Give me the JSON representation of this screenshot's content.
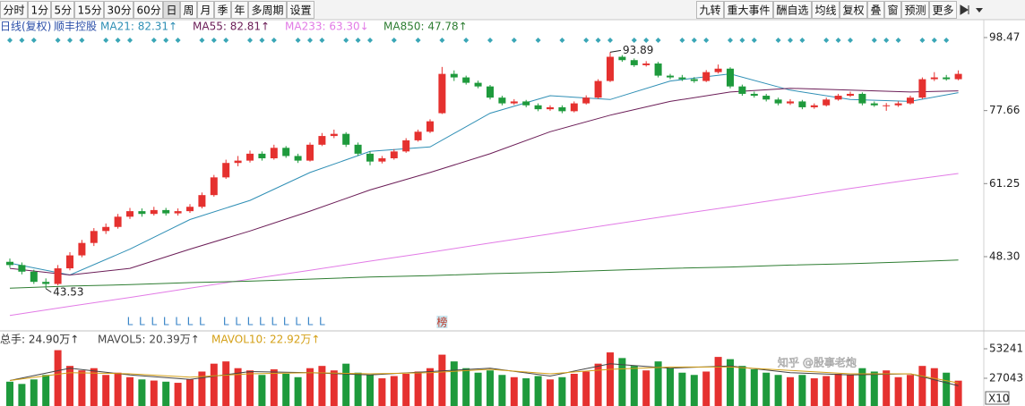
{
  "toolbar": {
    "left": [
      "分时",
      "1分",
      "5分",
      "15分",
      "30分",
      "60分",
      "日",
      "周",
      "月",
      "季",
      "年",
      "多周期",
      "设置"
    ],
    "right": [
      "九转",
      "重大事件",
      "酬自选",
      "均线",
      "复权",
      "叠",
      "窗",
      "预测",
      "更多"
    ],
    "selected": "日"
  },
  "watermark": "知乎 @股事老炮",
  "chart_data": [
    {
      "type": "candlestick",
      "title": "日线(复权)",
      "subtitle": "顺丰控股",
      "up_color": "#e5312f",
      "down_color": "#1e9a3c",
      "log_scale": true,
      "grid": false,
      "ylim": [
        38.5,
        100.2
      ],
      "yticks": [
        98.47,
        77.66,
        61.25,
        {
          "value": 48.3,
          "label": "48.30"
        }
      ],
      "open": [
        47.5,
        47.0,
        46.0,
        44.5,
        44.2,
        46.5,
        48.5,
        50.5,
        52.5,
        53.2,
        55.0,
        56.0,
        55.5,
        56.2,
        55.6,
        56.0,
        56.8,
        59.0,
        62.5,
        65.5,
        66.0,
        67.5,
        66.5,
        68.8,
        67.0,
        66.0,
        69.5,
        71.5,
        72.0,
        69.5,
        67.5,
        65.8,
        66.5,
        68.0,
        70.5,
        72.5,
        77.0,
        87.5,
        86.5,
        85.0,
        84.0,
        81.0,
        79.5,
        80.0,
        79.0,
        78.0,
        78.5,
        77.5,
        79.5,
        81.0,
        85.5,
        92.5,
        91.5,
        90.0,
        90.5,
        87.0,
        86.5,
        86.0,
        85.5,
        88.0,
        89.0,
        84.0,
        82.0,
        81.5,
        80.5,
        79.5,
        80.0,
        78.5,
        79.0,
        80.5,
        81.5,
        82.0,
        79.5,
        79.0,
        79.0,
        79.5,
        81.0,
        86.0,
        86.5,
        86.0
      ],
      "high": [
        48.0,
        47.4,
        46.3,
        45.0,
        47.0,
        49.0,
        51.0,
        53.0,
        53.8,
        55.5,
        56.6,
        56.5,
        56.8,
        56.6,
        56.5,
        57.3,
        59.5,
        63.0,
        66.2,
        67.0,
        68.2,
        68.0,
        69.5,
        69.2,
        67.5,
        70.0,
        72.2,
        73.0,
        72.4,
        70.0,
        68.0,
        67.0,
        68.5,
        71.0,
        73.0,
        75.5,
        89.5,
        88.5,
        87.0,
        85.6,
        84.4,
        81.5,
        80.6,
        80.4,
        79.5,
        79.0,
        79.0,
        80.0,
        81.6,
        86.0,
        93.89,
        93.0,
        92.0,
        91.2,
        91.0,
        87.5,
        87.2,
        86.6,
        88.6,
        90.2,
        89.4,
        84.5,
        82.6,
        82.0,
        81.0,
        80.6,
        80.4,
        79.5,
        81.0,
        82.0,
        82.6,
        82.4,
        80.0,
        79.6,
        80.0,
        81.5,
        86.5,
        88.0,
        87.2,
        88.5
      ],
      "low": [
        46.6,
        45.6,
        44.2,
        43.53,
        44.0,
        46.2,
        48.2,
        50.0,
        52.0,
        52.9,
        54.6,
        55.0,
        55.2,
        55.2,
        55.2,
        55.7,
        56.5,
        58.7,
        62.2,
        64.8,
        65.6,
        66.0,
        66.2,
        66.6,
        65.5,
        65.8,
        69.2,
        71.0,
        69.0,
        67.0,
        65.0,
        65.4,
        66.2,
        67.7,
        70.2,
        72.2,
        76.8,
        85.5,
        84.5,
        83.5,
        80.5,
        79.0,
        79.1,
        78.5,
        77.5,
        77.6,
        77.0,
        77.2,
        79.2,
        80.7,
        85.2,
        91.0,
        89.5,
        89.6,
        86.5,
        86.0,
        85.5,
        85.0,
        85.2,
        87.6,
        83.5,
        81.5,
        81.0,
        80.0,
        79.0,
        79.1,
        78.0,
        78.1,
        78.7,
        80.2,
        81.2,
        79.0,
        78.6,
        77.6,
        78.6,
        79.2,
        80.7,
        85.5,
        85.6,
        85.7
      ],
      "close": [
        47.0,
        46.0,
        44.5,
        44.2,
        46.5,
        48.5,
        50.5,
        52.5,
        53.2,
        55.0,
        56.0,
        55.5,
        56.2,
        55.6,
        56.0,
        56.8,
        59.0,
        62.5,
        65.5,
        66.0,
        67.5,
        66.5,
        68.8,
        67.0,
        66.0,
        69.5,
        71.5,
        72.0,
        69.5,
        67.5,
        65.8,
        66.5,
        68.0,
        70.5,
        72.5,
        75.0,
        87.5,
        86.5,
        85.0,
        84.0,
        81.0,
        79.5,
        80.0,
        79.0,
        78.0,
        78.5,
        77.5,
        79.5,
        81.0,
        85.5,
        92.5,
        91.5,
        90.0,
        90.5,
        87.0,
        86.5,
        86.0,
        85.5,
        88.0,
        89.0,
        84.0,
        82.0,
        81.5,
        80.5,
        79.5,
        80.0,
        78.5,
        79.0,
        80.5,
        81.5,
        82.0,
        79.5,
        79.0,
        79.0,
        79.5,
        81.0,
        86.0,
        86.5,
        86.0,
        87.5
      ],
      "bottom_marks": [
        null,
        null,
        null,
        null,
        null,
        null,
        null,
        null,
        null,
        null,
        "L",
        "L",
        "L",
        "L",
        "L",
        "L",
        "L",
        null,
        "L",
        "L",
        "L",
        "L",
        "L",
        "L",
        "L",
        "L",
        "L",
        null,
        null,
        null,
        null,
        null,
        null,
        null,
        null,
        null,
        "榜",
        null,
        null,
        null,
        null,
        null,
        null,
        null,
        null,
        null,
        null,
        null,
        null,
        null,
        null,
        null,
        null,
        null,
        null,
        null,
        null,
        null,
        null,
        null,
        null,
        null,
        null,
        null,
        null,
        null,
        null,
        null,
        null,
        null,
        null,
        null,
        null,
        null,
        null,
        null,
        null,
        null,
        null,
        null
      ],
      "series": [
        {
          "name": "MA21: 82.31↑",
          "color": "#2f8fb5",
          "x": [
            0,
            5,
            10,
            15,
            20,
            25,
            30,
            35,
            40,
            45,
            50,
            55,
            60,
            65,
            70,
            75,
            79
          ],
          "values": [
            47.3,
            45.5,
            49.5,
            54.5,
            58.0,
            63.5,
            68.0,
            69.0,
            77.0,
            81.5,
            80.5,
            85.5,
            87.5,
            83.0,
            80.5,
            80.0,
            82.31
          ]
        },
        {
          "name": "MA55: 82.81↑",
          "color": "#6b1d57",
          "x": [
            0,
            5,
            10,
            15,
            20,
            25,
            30,
            35,
            40,
            45,
            50,
            55,
            60,
            65,
            70,
            75,
            79
          ],
          "values": [
            46.5,
            45.5,
            46.5,
            49.5,
            52.5,
            56.0,
            60.0,
            63.5,
            67.5,
            72.5,
            76.5,
            80.0,
            82.5,
            83.5,
            83.0,
            82.5,
            82.81
          ]
        },
        {
          "name": "MA233: 63.30↓",
          "color": "#e27be6",
          "x": [
            0,
            5,
            10,
            15,
            20,
            25,
            30,
            35,
            40,
            45,
            50,
            55,
            60,
            65,
            70,
            75,
            79
          ],
          "values": [
            39.9,
            41.1,
            42.3,
            43.6,
            44.9,
            46.2,
            47.6,
            49.0,
            50.5,
            52.0,
            53.6,
            55.2,
            56.8,
            58.5,
            60.3,
            62.0,
            63.3
          ]
        },
        {
          "name": "MA850: 47.78↑",
          "color": "#2e7d32",
          "x": [
            0,
            5,
            10,
            15,
            20,
            25,
            30,
            35,
            40,
            45,
            50,
            55,
            60,
            65,
            70,
            75,
            79
          ],
          "values": [
            43.6,
            43.9,
            44.1,
            44.4,
            44.6,
            44.9,
            45.2,
            45.4,
            45.7,
            45.9,
            46.2,
            46.5,
            46.7,
            47.0,
            47.2,
            47.5,
            47.78
          ]
        }
      ]
    },
    {
      "type": "bar",
      "ylim": [
        2400,
        58800
      ],
      "yticks": [
        53241,
        27043
      ],
      "unit_label": "X10",
      "series": [
        {
          "name": "总手: 24.90万↑",
          "color": "#333333",
          "values": [
            24000,
            22000,
            26000,
            30000,
            52000,
            38000,
            34000,
            36000,
            30000,
            32000,
            28000,
            26000,
            25000,
            24000,
            23000,
            26000,
            33000,
            40000,
            42000,
            36000,
            34000,
            30000,
            35000,
            31000,
            28000,
            36000,
            38000,
            34000,
            40000,
            32000,
            30000,
            27000,
            29000,
            31000,
            33000,
            36000,
            48000,
            42000,
            36000,
            32000,
            34000,
            30000,
            28000,
            27000,
            29000,
            26000,
            28000,
            31000,
            33000,
            40000,
            50000,
            45000,
            38000,
            34000,
            42000,
            36000,
            32000,
            30000,
            33000,
            46000,
            44000,
            38000,
            35000,
            32000,
            30000,
            28000,
            30000,
            27000,
            29000,
            31000,
            30000,
            36000,
            33000,
            34000,
            28000,
            30000,
            38000,
            36000,
            32000,
            24900
          ]
        },
        {
          "name": "MAVOL5: 20.39万↑",
          "color": "#444444",
          "x": [
            0,
            5,
            10,
            15,
            20,
            25,
            30,
            35,
            40,
            45,
            50,
            55,
            60,
            65,
            70,
            75,
            79
          ],
          "values": [
            25000,
            36000,
            30000,
            26000,
            33000,
            32000,
            30000,
            33000,
            36000,
            29000,
            40000,
            36000,
            38000,
            32000,
            30000,
            31000,
            20390
          ]
        },
        {
          "name": "MAVOL10: 22.92万↑",
          "color": "#d4a017",
          "x": [
            0,
            5,
            10,
            15,
            20,
            25,
            30,
            35,
            40,
            45,
            50,
            55,
            60,
            65,
            70,
            75,
            79
          ],
          "values": [
            25000,
            32000,
            31000,
            28000,
            31000,
            32000,
            31000,
            32000,
            35000,
            31000,
            35000,
            37000,
            37000,
            34000,
            31000,
            31000,
            22920
          ]
        }
      ]
    }
  ]
}
